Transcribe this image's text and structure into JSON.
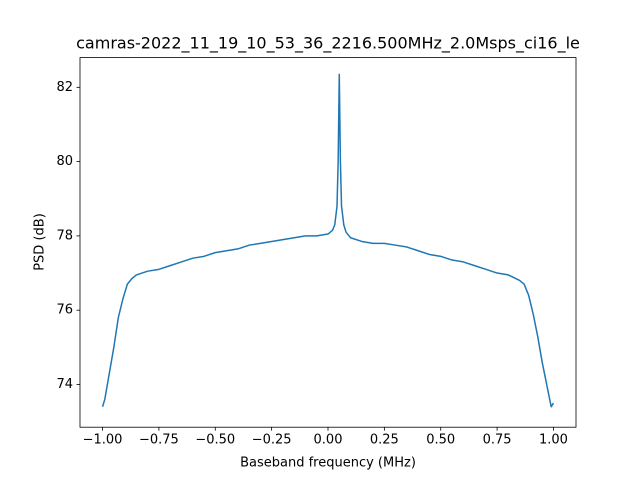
{
  "chart_data": {
    "type": "line",
    "title": "camras-2022_11_19_10_53_36_2216.500MHz_2.0Msps_ci16_le",
    "x_label": "Baseband frequency (MHz)",
    "y_label": "PSD (dB)",
    "color": "#1f77b4",
    "x": [
      -1.0,
      -0.99,
      -0.97,
      -0.95,
      -0.93,
      -0.91,
      -0.89,
      -0.87,
      -0.85,
      -0.8,
      -0.75,
      -0.7,
      -0.65,
      -0.6,
      -0.55,
      -0.5,
      -0.45,
      -0.4,
      -0.35,
      -0.3,
      -0.25,
      -0.2,
      -0.15,
      -0.1,
      -0.05,
      0.0,
      0.02,
      0.03,
      0.04,
      0.045,
      0.05,
      0.055,
      0.06,
      0.07,
      0.08,
      0.1,
      0.15,
      0.2,
      0.25,
      0.3,
      0.35,
      0.4,
      0.45,
      0.5,
      0.55,
      0.6,
      0.65,
      0.7,
      0.75,
      0.8,
      0.85,
      0.87,
      0.89,
      0.91,
      0.93,
      0.95,
      0.97,
      0.99,
      1.0
    ],
    "values": [
      73.4,
      73.6,
      74.3,
      75.0,
      75.8,
      76.3,
      76.7,
      76.85,
      76.95,
      77.05,
      77.1,
      77.2,
      77.3,
      77.4,
      77.45,
      77.55,
      77.6,
      77.65,
      77.75,
      77.8,
      77.85,
      77.9,
      77.95,
      78.0,
      78.0,
      78.05,
      78.15,
      78.3,
      78.8,
      80.0,
      82.35,
      80.0,
      78.8,
      78.3,
      78.1,
      77.95,
      77.85,
      77.8,
      77.8,
      77.75,
      77.7,
      77.6,
      77.5,
      77.45,
      77.35,
      77.3,
      77.2,
      77.1,
      77.0,
      76.95,
      76.8,
      76.7,
      76.4,
      75.9,
      75.3,
      74.6,
      74.0,
      73.4,
      73.5
    ],
    "xlim": [
      -1.1,
      1.1
    ],
    "ylim": [
      72.85,
      82.8
    ],
    "xticks": [
      {
        "value": -1.0,
        "label": "−1.00"
      },
      {
        "value": -0.75,
        "label": "−0.75"
      },
      {
        "value": -0.5,
        "label": "−0.50"
      },
      {
        "value": -0.25,
        "label": "−0.25"
      },
      {
        "value": 0.0,
        "label": "0.00"
      },
      {
        "value": 0.25,
        "label": "0.25"
      },
      {
        "value": 0.5,
        "label": "0.50"
      },
      {
        "value": 0.75,
        "label": "0.75"
      },
      {
        "value": 1.0,
        "label": "1.00"
      }
    ],
    "yticks": [
      74,
      76,
      78,
      80,
      82
    ],
    "grid": false
  }
}
